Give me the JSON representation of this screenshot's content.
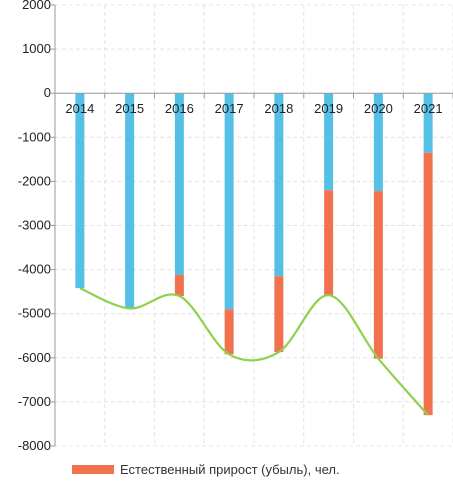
{
  "chart_data": {
    "type": "bar",
    "categories": [
      "2014",
      "2015",
      "2016",
      "2017",
      "2018",
      "2019",
      "2020",
      "2021"
    ],
    "series": [
      {
        "values": [
          -4420,
          -4880,
          -4120,
          -4900,
          -4150,
          -2200,
          -2220,
          -1350
        ],
        "color": "#55c0e6"
      },
      {
        "name": "Естественный прирост (убыль), чел.",
        "values": [
          0,
          0,
          -480,
          -1020,
          -1720,
          -2380,
          -3800,
          -5950
        ],
        "color": "#f2714f"
      }
    ],
    "trend_line": {
      "values": [
        -4420,
        -4880,
        -4600,
        -5920,
        -5870,
        -4580,
        -6020,
        -7300
      ],
      "color": "#8fd14f"
    },
    "ylim": [
      -8000,
      2000
    ],
    "yticks": [
      2000,
      1000,
      0,
      -1000,
      -2000,
      -3000,
      -4000,
      -5000,
      -6000,
      -7000,
      -8000
    ],
    "grid": true,
    "legend_position": "bottom",
    "title": "",
    "xlabel": "",
    "ylabel": ""
  },
  "legend": {
    "label": "Естественный прирост (убыль), чел."
  }
}
